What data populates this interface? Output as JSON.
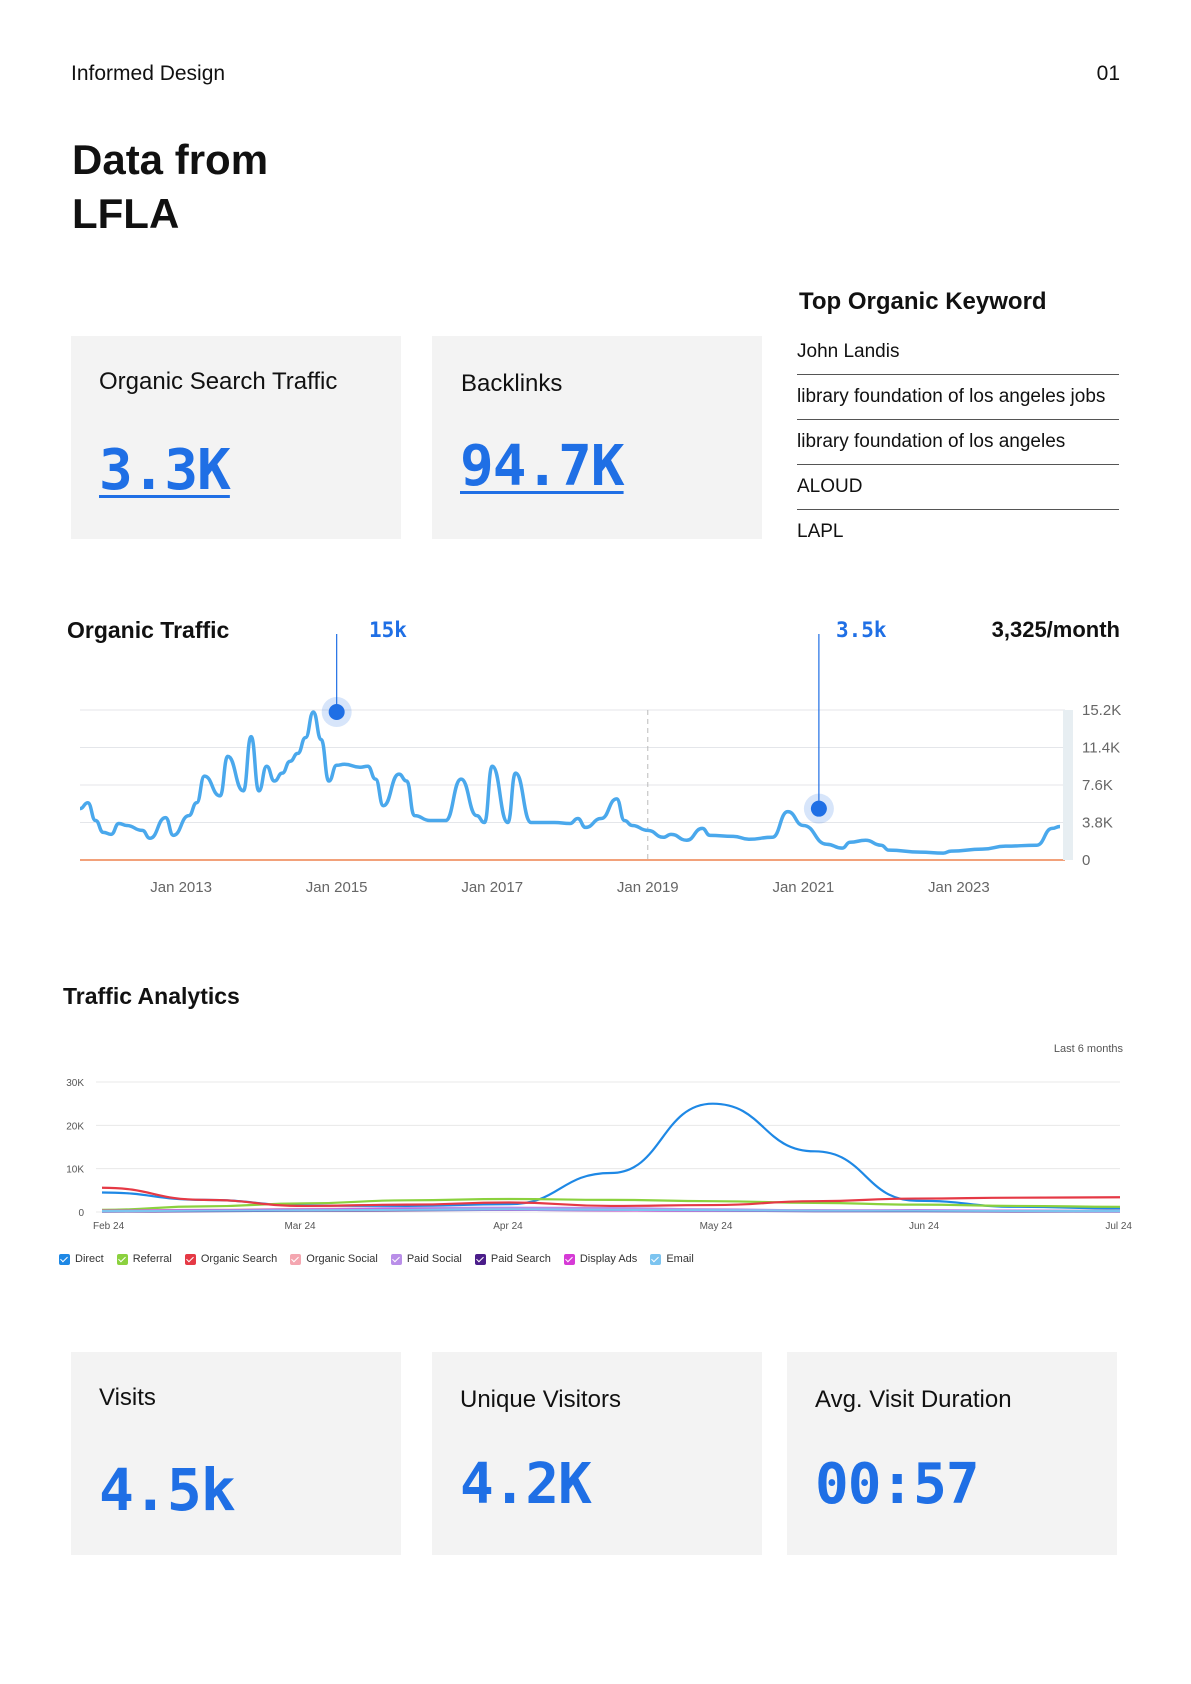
{
  "header": {
    "brand": "Informed Design",
    "page_number": "01",
    "title_line1": "Data from",
    "title_line2": "LFLA"
  },
  "kpis_top": [
    {
      "label": "Organic Search Traffic",
      "value": "3.3K"
    },
    {
      "label": "Backlinks",
      "value": "94.7K"
    }
  ],
  "keywords": {
    "title": "Top Organic Keyword",
    "items": [
      "John Landis",
      "library foundation of los angeles jobs",
      "library foundation of los angeles",
      "ALOUD",
      "LAPL"
    ]
  },
  "organic_traffic": {
    "title": "Organic Traffic",
    "peak1_label": "15k",
    "peak2_label": "3.5k",
    "monthly": "3,325/month"
  },
  "traffic_analytics": {
    "title": "Traffic Analytics",
    "period": "Last 6 months"
  },
  "kpis_bottom": [
    {
      "label": "Visits",
      "value": "4.5k"
    },
    {
      "label": "Unique Visitors",
      "value": "4.2K"
    },
    {
      "label": "Avg. Visit Duration",
      "value": "00:57"
    }
  ],
  "colors": {
    "accent": "#1f6fe5",
    "line": "#4aa8ec",
    "card_bg": "#f3f3f3"
  },
  "chart_data": [
    {
      "type": "line",
      "title": "Organic Traffic",
      "x_tick_labels": [
        "Jan 2013",
        "Jan 2015",
        "Jan 2017",
        "Jan 2019",
        "Jan 2021",
        "Jan 2023"
      ],
      "y_tick_labels": [
        "15.2K",
        "11.4K",
        "7.6K",
        "3.8K",
        "0"
      ],
      "ylim": [
        0,
        15200
      ],
      "grid": true,
      "series": [
        {
          "x": [
            2011.7,
            2011.8,
            2011.9,
            2012.0,
            2012.1,
            2012.2,
            2012.3,
            2012.5,
            2012.6,
            2012.8,
            2012.9,
            2013.1,
            2013.2,
            2013.3,
            2013.5,
            2013.6,
            2013.8,
            2013.9,
            2014.0,
            2014.1,
            2014.2,
            2014.3,
            2014.4,
            2014.5,
            2014.6,
            2014.7,
            2014.8,
            2014.9,
            2015.0,
            2015.1,
            2015.3,
            2015.4,
            2015.5,
            2015.6,
            2015.8,
            2015.9,
            2016.0,
            2016.2,
            2016.4,
            2016.6,
            2016.8,
            2016.9,
            2017.0,
            2017.2,
            2017.3,
            2017.5,
            2017.8,
            2018.0,
            2018.1,
            2018.2,
            2018.4,
            2018.6,
            2018.7,
            2018.8,
            2019.0,
            2019.2,
            2019.3,
            2019.5,
            2019.7,
            2019.8,
            2020.1,
            2020.3,
            2020.6,
            2020.8,
            2021.0,
            2021.3,
            2021.5,
            2021.6,
            2021.8,
            2022.0,
            2022.1,
            2022.5,
            2022.8,
            2022.9,
            2023.3,
            2023.6,
            2024.0,
            2024.2,
            2024.3
          ],
          "y": [
            5200,
            5800,
            4000,
            2800,
            2600,
            3700,
            3500,
            3000,
            2200,
            4300,
            2500,
            4500,
            5800,
            8500,
            6500,
            10500,
            7000,
            12500,
            7000,
            9500,
            8000,
            8800,
            10000,
            10800,
            12400,
            15000,
            12200,
            8000,
            9600,
            9700,
            9400,
            9500,
            8200,
            5500,
            8700,
            8000,
            4500,
            4000,
            4000,
            8200,
            4500,
            3800,
            9500,
            3800,
            8800,
            3800,
            3800,
            3700,
            4200,
            3300,
            4200,
            6200,
            4000,
            3500,
            3000,
            2300,
            2600,
            2000,
            3200,
            2500,
            2400,
            2100,
            2300,
            4900,
            3500,
            1600,
            1200,
            1800,
            2000,
            1500,
            1000,
            800,
            700,
            900,
            1100,
            1400,
            1500,
            3200,
            3400
          ]
        }
      ],
      "annotations": [
        {
          "x": 2015.0,
          "y": 15000,
          "label": "15k"
        },
        {
          "x": 2021.2,
          "y": 5200,
          "label": "3.5k"
        }
      ],
      "monthly_value": "3,325/month"
    },
    {
      "type": "line",
      "title": "Traffic Analytics",
      "x_tick_labels": [
        "Feb 24",
        "Mar 24",
        "Apr 24",
        "May 24",
        "Jun 24",
        "Jul 24"
      ],
      "y_tick_labels": [
        "30K",
        "20K",
        "10K",
        "0"
      ],
      "ylim": [
        0,
        30000
      ],
      "x": [
        0,
        0.5,
        1,
        1.5,
        2,
        2.5,
        3,
        3.5,
        4,
        4.5,
        5
      ],
      "series": [
        {
          "name": "Direct",
          "color": "#1e88e5",
          "values": [
            4500,
            2800,
            1500,
            1400,
            1800,
            9000,
            25000,
            14000,
            2600,
            1200,
            800
          ]
        },
        {
          "name": "Referral",
          "color": "#8bd13e",
          "values": [
            500,
            1300,
            2000,
            2700,
            3000,
            2800,
            2500,
            2100,
            1700,
            1400,
            1200
          ]
        },
        {
          "name": "Organic Search",
          "color": "#e53945",
          "values": [
            5600,
            2800,
            1400,
            1700,
            2200,
            1400,
            1600,
            2500,
            3100,
            3300,
            3400
          ]
        },
        {
          "name": "Organic Social",
          "color": "#f4a6b0",
          "values": [
            300,
            500,
            700,
            800,
            700,
            600,
            400,
            400,
            300,
            300,
            300
          ]
        },
        {
          "name": "Paid Social",
          "color": "#b98ee8",
          "values": [
            200,
            400,
            600,
            900,
            1000,
            900,
            600,
            400,
            300,
            300,
            200
          ]
        },
        {
          "name": "Paid Search",
          "color": "#4b1d8a",
          "values": [
            100,
            200,
            300,
            400,
            500,
            400,
            300,
            200,
            200,
            150,
            100
          ]
        },
        {
          "name": "Display Ads",
          "color": "#d63ad6",
          "values": [
            300,
            400,
            500,
            600,
            500,
            400,
            300,
            300,
            400,
            300,
            200
          ]
        },
        {
          "name": "Email",
          "color": "#7cc4f0",
          "values": [
            200,
            300,
            400,
            500,
            600,
            500,
            400,
            300,
            300,
            250,
            200
          ]
        }
      ],
      "legend_position": "bottom-left",
      "period": "Last 6 months"
    }
  ]
}
